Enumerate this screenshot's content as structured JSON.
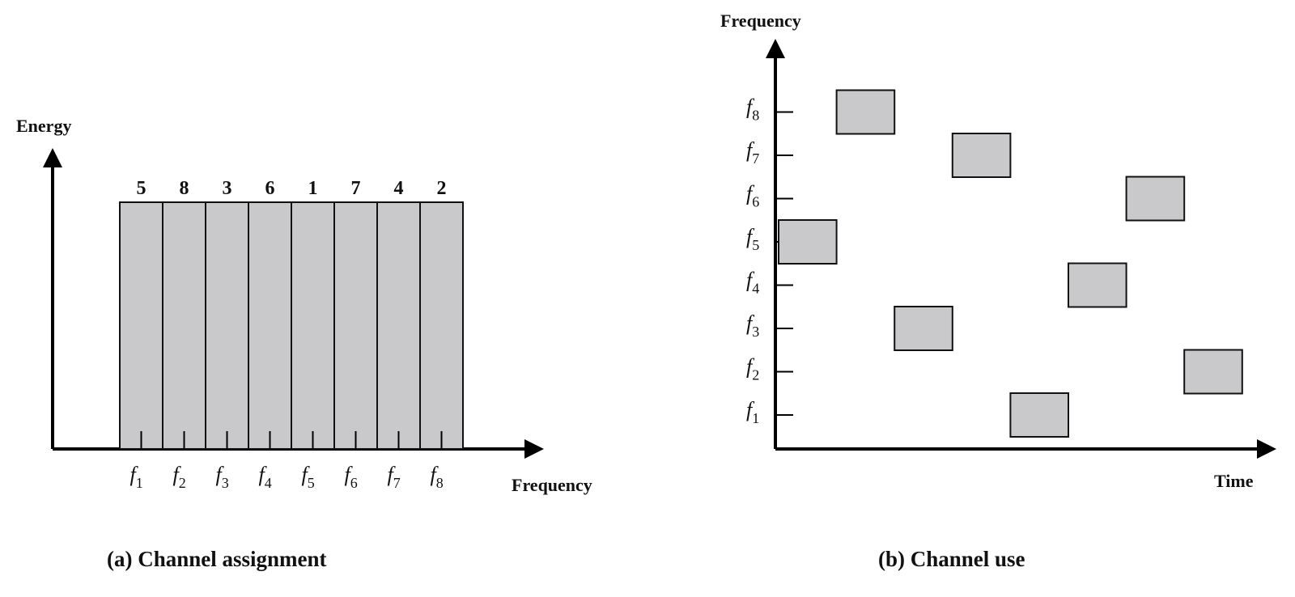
{
  "panel_a": {
    "ylabel": "Energy",
    "xlabel": "Frequency",
    "caption": "(a) Channel assignment",
    "channels": [
      {
        "top": "5",
        "freq": "f",
        "sub": "1"
      },
      {
        "top": "8",
        "freq": "f",
        "sub": "2"
      },
      {
        "top": "3",
        "freq": "f",
        "sub": "3"
      },
      {
        "top": "6",
        "freq": "f",
        "sub": "4"
      },
      {
        "top": "1",
        "freq": "f",
        "sub": "5"
      },
      {
        "top": "7",
        "freq": "f",
        "sub": "6"
      },
      {
        "top": "4",
        "freq": "f",
        "sub": "7"
      },
      {
        "top": "2",
        "freq": "f",
        "sub": "8"
      }
    ]
  },
  "panel_b": {
    "ylabel": "Frequency",
    "xlabel": "Time",
    "caption": "(b) Channel use",
    "levels": [
      {
        "freq": "f",
        "sub": "1"
      },
      {
        "freq": "f",
        "sub": "2"
      },
      {
        "freq": "f",
        "sub": "3"
      },
      {
        "freq": "f",
        "sub": "4"
      },
      {
        "freq": "f",
        "sub": "5"
      },
      {
        "freq": "f",
        "sub": "6"
      },
      {
        "freq": "f",
        "sub": "7"
      },
      {
        "freq": "f",
        "sub": "8"
      }
    ],
    "hops": [
      5,
      8,
      3,
      7,
      1,
      4,
      6,
      2
    ],
    "colors": {
      "box": "#c9c9cc",
      "line": "#000000"
    }
  }
}
